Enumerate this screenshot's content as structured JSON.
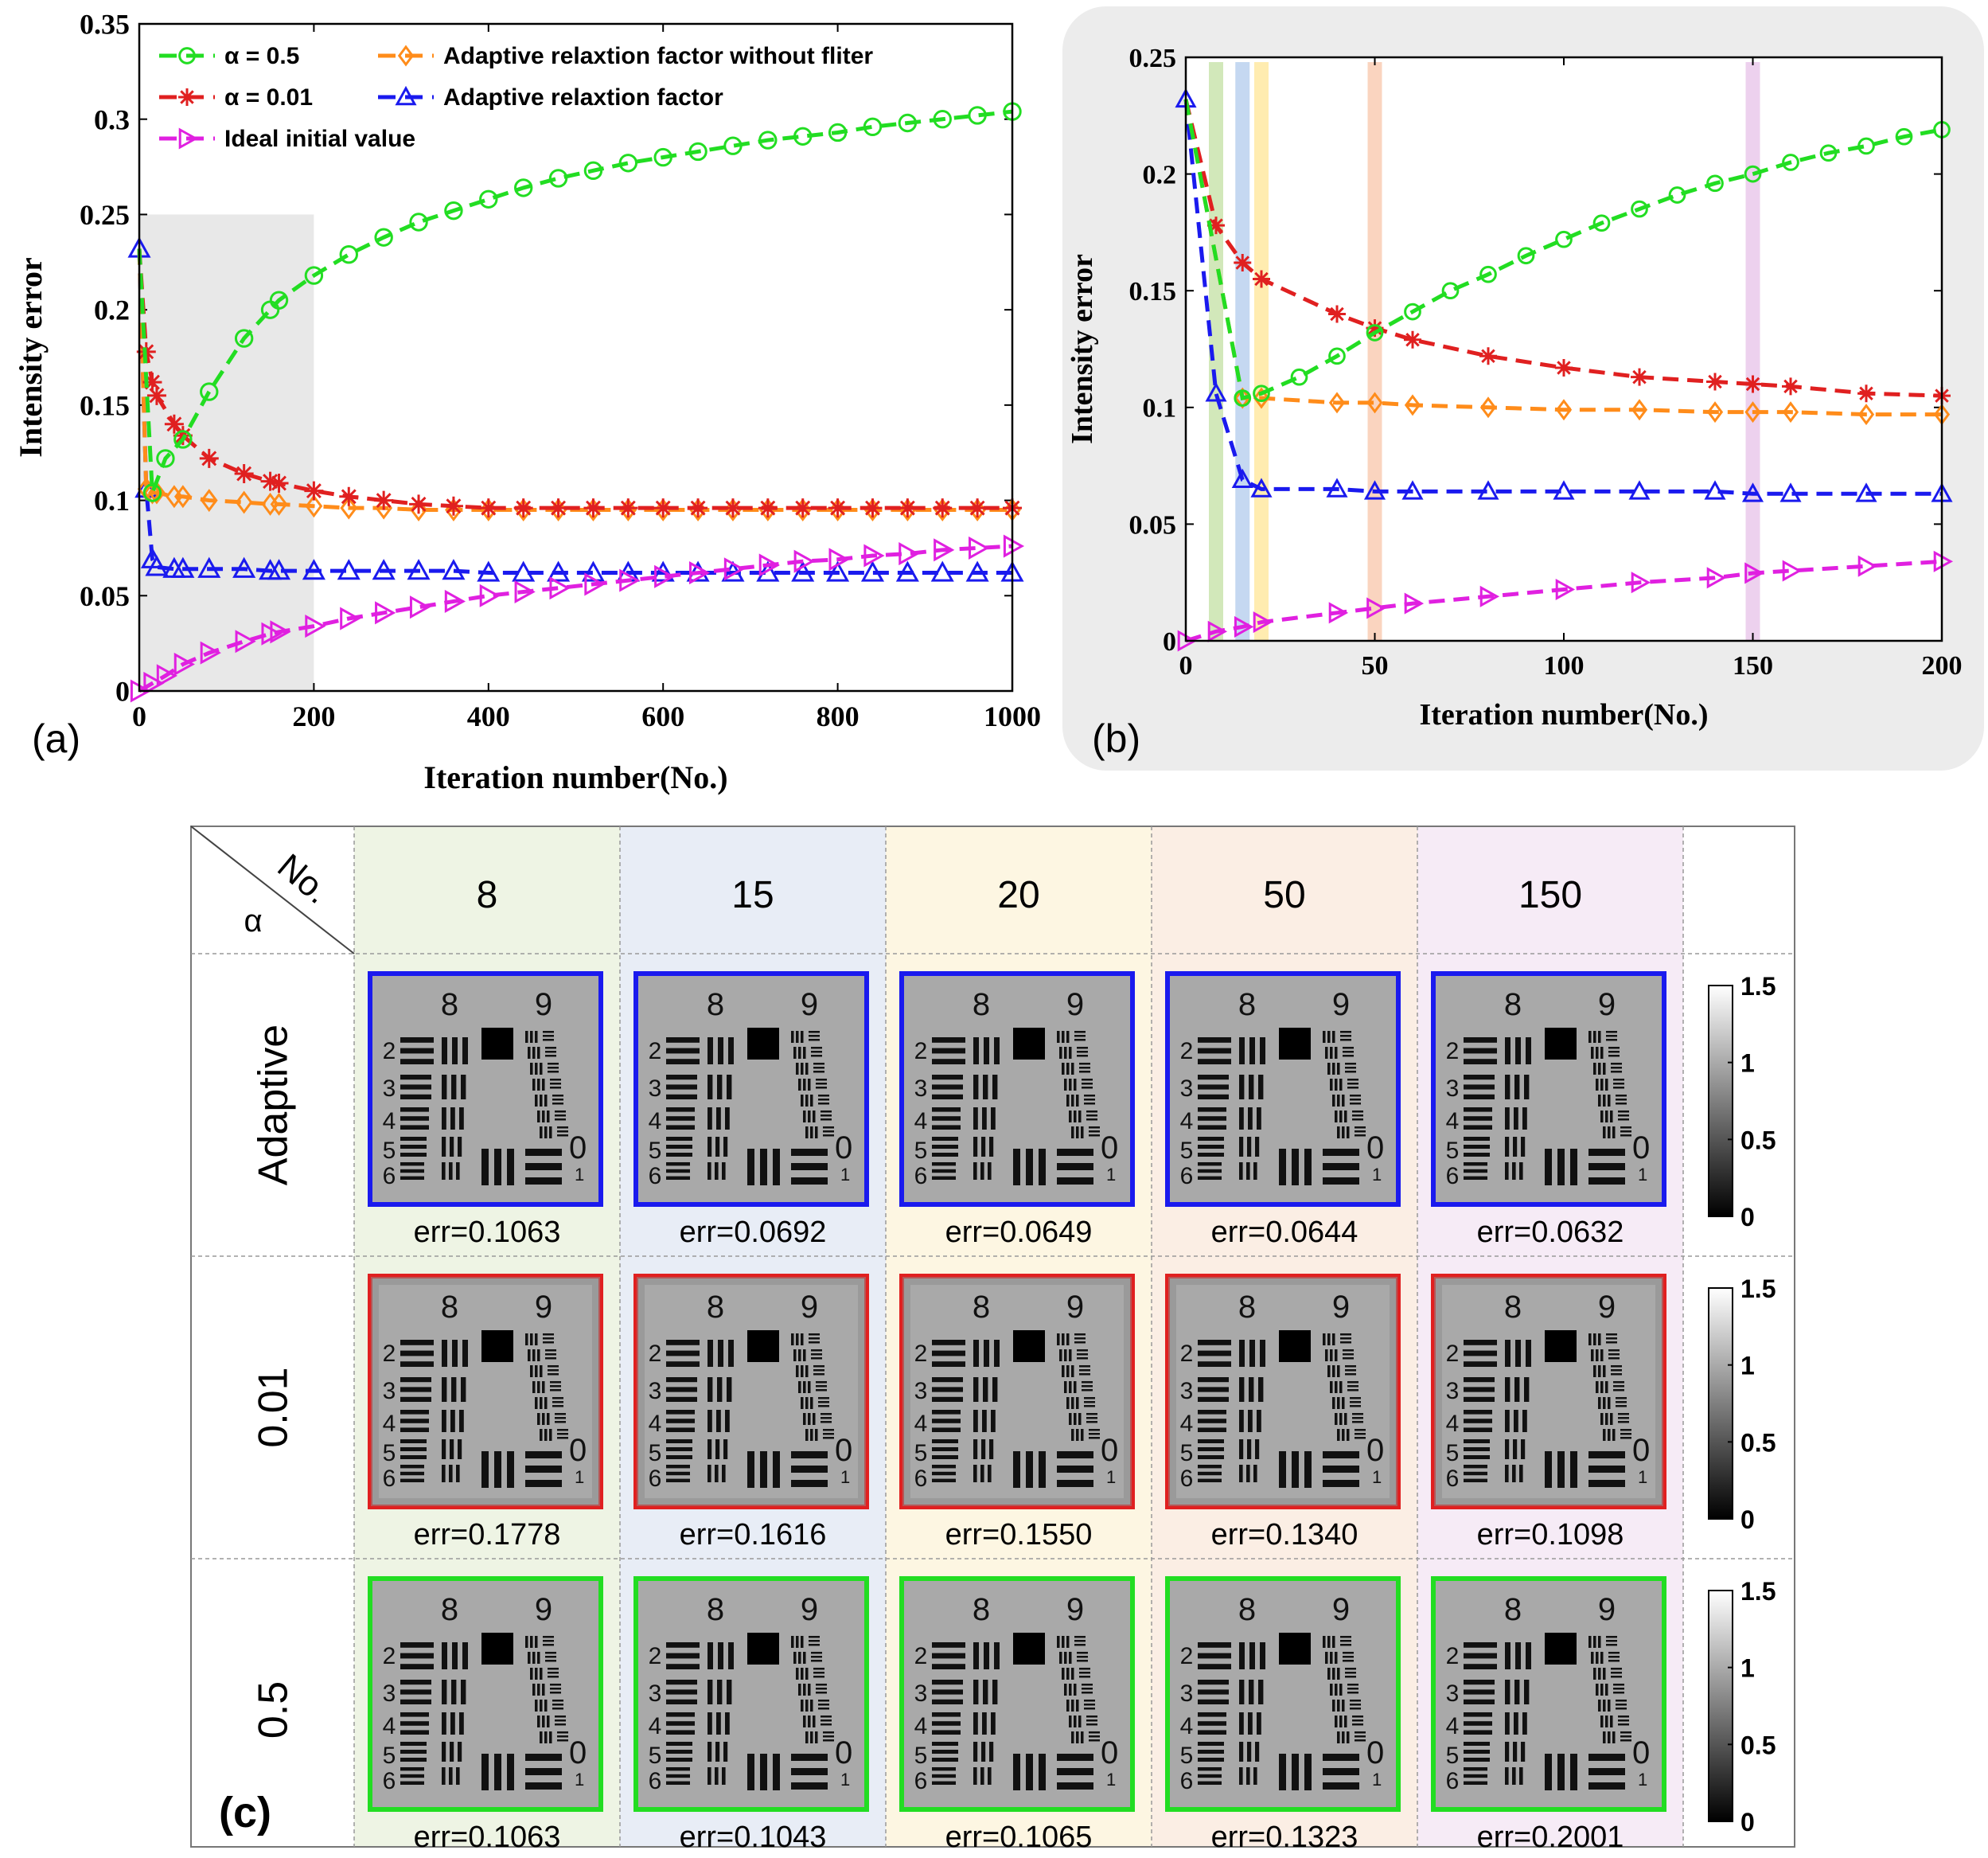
{
  "chart_data": [
    {
      "panel": "(a)",
      "type": "line",
      "xlabel": "Iteration number(No.)",
      "ylabel": "Intensity error",
      "xlim": [
        0,
        1000
      ],
      "ylim": [
        0,
        0.35
      ],
      "xticks": [
        "0",
        "200",
        "400",
        "600",
        "800",
        "1000"
      ],
      "yticks": [
        "0",
        "0.05",
        "0.1",
        "0.15",
        "0.2",
        "0.25",
        "0.3",
        "0.35"
      ],
      "legend": "top-left",
      "zoom_region": {
        "x": [
          0,
          200
        ],
        "y": [
          0,
          0.25
        ],
        "color": "#e0e0e0"
      },
      "series": [
        {
          "name": "α = 0.5",
          "color": "#22dd22",
          "marker": "circle",
          "x": [
            0,
            15,
            30,
            50,
            80,
            120,
            150,
            160,
            200,
            240,
            280,
            320,
            360,
            400,
            440,
            480,
            520,
            560,
            600,
            640,
            680,
            720,
            760,
            800,
            840,
            880,
            920,
            960,
            1000
          ],
          "y": [
            0.232,
            0.104,
            0.122,
            0.132,
            0.157,
            0.185,
            0.2,
            0.205,
            0.218,
            0.229,
            0.238,
            0.246,
            0.252,
            0.258,
            0.264,
            0.269,
            0.273,
            0.277,
            0.28,
            0.283,
            0.286,
            0.289,
            0.291,
            0.293,
            0.296,
            0.298,
            0.3,
            0.302,
            0.304
          ]
        },
        {
          "name": "α = 0.01",
          "color": "#e02020",
          "marker": "star",
          "x": [
            0,
            8,
            15,
            20,
            40,
            50,
            80,
            120,
            150,
            160,
            200,
            240,
            280,
            320,
            360,
            400,
            440,
            480,
            520,
            560,
            600,
            640,
            680,
            720,
            760,
            800,
            840,
            880,
            920,
            960,
            1000
          ],
          "y": [
            0.232,
            0.178,
            0.162,
            0.155,
            0.14,
            0.134,
            0.122,
            0.114,
            0.11,
            0.109,
            0.105,
            0.102,
            0.1,
            0.098,
            0.097,
            0.096,
            0.096,
            0.096,
            0.096,
            0.096,
            0.096,
            0.096,
            0.096,
            0.096,
            0.096,
            0.096,
            0.096,
            0.096,
            0.096,
            0.096,
            0.096
          ]
        },
        {
          "name": "Adaptive relaxtion factor without fliter",
          "color": "#ff8c1a",
          "marker": "diamond",
          "x": [
            0,
            8,
            15,
            20,
            40,
            50,
            80,
            120,
            150,
            160,
            200,
            240,
            280,
            320,
            360,
            400,
            440,
            480,
            520,
            560,
            600,
            640,
            680,
            720,
            760,
            800,
            840,
            880,
            920,
            960,
            1000
          ],
          "y": [
            0.232,
            0.106,
            0.104,
            0.104,
            0.102,
            0.102,
            0.1,
            0.099,
            0.098,
            0.098,
            0.097,
            0.096,
            0.096,
            0.095,
            0.095,
            0.095,
            0.095,
            0.095,
            0.095,
            0.095,
            0.095,
            0.095,
            0.095,
            0.095,
            0.095,
            0.095,
            0.095,
            0.095,
            0.095,
            0.095,
            0.095
          ]
        },
        {
          "name": "Adaptive relaxtion factor",
          "color": "#1a1aee",
          "marker": "triangle",
          "x": [
            0,
            8,
            15,
            20,
            40,
            50,
            80,
            120,
            150,
            160,
            200,
            240,
            280,
            320,
            360,
            400,
            440,
            480,
            520,
            560,
            600,
            640,
            680,
            720,
            760,
            800,
            840,
            880,
            920,
            960,
            1000
          ],
          "y": [
            0.232,
            0.106,
            0.069,
            0.065,
            0.064,
            0.064,
            0.064,
            0.064,
            0.063,
            0.063,
            0.063,
            0.063,
            0.063,
            0.063,
            0.063,
            0.062,
            0.062,
            0.062,
            0.062,
            0.062,
            0.062,
            0.062,
            0.062,
            0.062,
            0.062,
            0.062,
            0.062,
            0.062,
            0.062,
            0.062,
            0.062
          ]
        },
        {
          "name": "Ideal initial value",
          "color": "#e020e0",
          "marker": "triangle-right",
          "x": [
            0,
            15,
            30,
            50,
            80,
            120,
            150,
            160,
            200,
            240,
            280,
            320,
            360,
            400,
            440,
            480,
            520,
            560,
            600,
            640,
            680,
            720,
            760,
            800,
            840,
            880,
            920,
            960,
            1000
          ],
          "y": [
            0,
            0.004,
            0.008,
            0.014,
            0.02,
            0.026,
            0.03,
            0.031,
            0.034,
            0.038,
            0.041,
            0.044,
            0.047,
            0.05,
            0.052,
            0.054,
            0.056,
            0.058,
            0.06,
            0.062,
            0.064,
            0.066,
            0.068,
            0.069,
            0.071,
            0.072,
            0.074,
            0.075,
            0.076
          ]
        }
      ]
    },
    {
      "panel": "(b)",
      "type": "line",
      "xlabel": "Iteration number(No.)",
      "ylabel": "Intensity error",
      "xlim": [
        0,
        200
      ],
      "ylim": [
        0,
        0.25
      ],
      "xticks": [
        "0",
        "50",
        "100",
        "150",
        "200"
      ],
      "yticks": [
        "0",
        "0.05",
        "0.1",
        "0.15",
        "0.2",
        "0.25"
      ],
      "highlight_bands": [
        {
          "x": 8,
          "color": "#9ccc65"
        },
        {
          "x": 15,
          "color": "#7fa8e0"
        },
        {
          "x": 20,
          "color": "#ffd54f"
        },
        {
          "x": 50,
          "color": "#f4a070"
        },
        {
          "x": 150,
          "color": "#d79ad9"
        }
      ],
      "series": [
        {
          "name": "α = 0.5",
          "color": "#22dd22",
          "marker": "circle",
          "x": [
            0,
            15,
            20,
            30,
            40,
            50,
            60,
            70,
            80,
            90,
            100,
            110,
            120,
            130,
            140,
            150,
            160,
            170,
            180,
            190,
            200
          ],
          "y": [
            0.232,
            0.104,
            0.106,
            0.113,
            0.122,
            0.132,
            0.141,
            0.15,
            0.157,
            0.165,
            0.172,
            0.179,
            0.185,
            0.191,
            0.196,
            0.2,
            0.205,
            0.209,
            0.212,
            0.216,
            0.219
          ]
        },
        {
          "name": "α = 0.01",
          "color": "#e02020",
          "marker": "star",
          "x": [
            0,
            8,
            15,
            20,
            40,
            50,
            60,
            80,
            100,
            120,
            140,
            150,
            160,
            180,
            200
          ],
          "y": [
            0.232,
            0.178,
            0.162,
            0.155,
            0.14,
            0.134,
            0.129,
            0.122,
            0.117,
            0.113,
            0.111,
            0.11,
            0.109,
            0.106,
            0.105
          ]
        },
        {
          "name": "Adaptive relaxtion factor without fliter",
          "color": "#ff8c1a",
          "marker": "diamond",
          "x": [
            0,
            15,
            20,
            40,
            50,
            60,
            80,
            100,
            120,
            140,
            150,
            160,
            180,
            200
          ],
          "y": [
            0.232,
            0.104,
            0.104,
            0.102,
            0.102,
            0.101,
            0.1,
            0.099,
            0.099,
            0.098,
            0.098,
            0.098,
            0.097,
            0.097
          ]
        },
        {
          "name": "Adaptive relaxtion factor",
          "color": "#1a1aee",
          "marker": "triangle",
          "x": [
            0,
            8,
            15,
            20,
            40,
            50,
            60,
            80,
            100,
            120,
            140,
            150,
            160,
            180,
            200
          ],
          "y": [
            0.232,
            0.106,
            0.069,
            0.065,
            0.065,
            0.064,
            0.064,
            0.064,
            0.064,
            0.064,
            0.064,
            0.063,
            0.063,
            0.063,
            0.063
          ]
        },
        {
          "name": "Ideal initial value",
          "color": "#e020e0",
          "marker": "triangle-right",
          "x": [
            0,
            8,
            15,
            20,
            40,
            50,
            60,
            80,
            100,
            120,
            140,
            150,
            160,
            180,
            200
          ],
          "y": [
            0,
            0.004,
            0.006,
            0.008,
            0.012,
            0.014,
            0.016,
            0.019,
            0.022,
            0.025,
            0.027,
            0.029,
            0.03,
            0.032,
            0.034
          ]
        }
      ]
    }
  ],
  "panel_labels": {
    "a": "(a)",
    "b": "(b)",
    "c": "(c)"
  },
  "table": {
    "corner_top": "No.",
    "corner_bottom": "α",
    "columns": [
      {
        "label": "8",
        "tint": "#eef4e4"
      },
      {
        "label": "15",
        "tint": "#e8edf6"
      },
      {
        "label": "20",
        "tint": "#fdf6e2"
      },
      {
        "label": "50",
        "tint": "#fbeee4"
      },
      {
        "label": "150",
        "tint": "#f6ebf6"
      }
    ],
    "rows": [
      {
        "label": "Adaptive",
        "frame_color": "#1a1aee",
        "errors": [
          "err=0.1063",
          "err=0.0692",
          "err=0.0649",
          "err=0.0644",
          "err=0.0632"
        ]
      },
      {
        "label": "0.01",
        "frame_color": "#e02020",
        "errors": [
          "err=0.1778",
          "err=0.1616",
          "err=0.1550",
          "err=0.1340",
          "err=0.1098"
        ]
      },
      {
        "label": "0.5",
        "frame_color": "#22dd22",
        "errors": [
          "err=0.1063",
          "err=0.1043",
          "err=0.1065",
          "err=0.1323",
          "err=0.2001"
        ]
      }
    ],
    "colorbar_ticks": [
      "1.5",
      "1",
      "0.5",
      "0"
    ],
    "target_labels": {
      "g8": "8",
      "g9": "9",
      "n2": "2",
      "n3": "3",
      "n4": "4",
      "n5": "5",
      "n6": "6",
      "n0": "0",
      "n1": "1"
    }
  }
}
